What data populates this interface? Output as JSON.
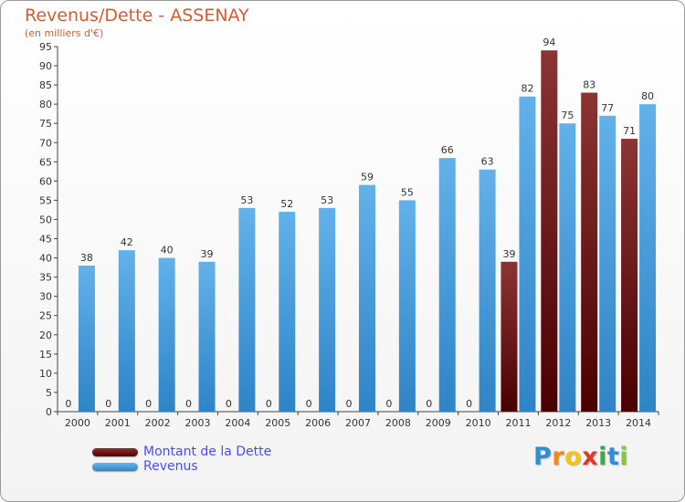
{
  "header": {
    "title": "Revenus/Dette - ASSENAY",
    "subtitle": "(en milliers d'€)"
  },
  "chart_data": {
    "type": "bar",
    "categories": [
      "2000",
      "2001",
      "2002",
      "2003",
      "2004",
      "2005",
      "2006",
      "2007",
      "2008",
      "2009",
      "2010",
      "2011",
      "2012",
      "2013",
      "2014"
    ],
    "series": [
      {
        "name": "Montant de la Dette",
        "color": "#7a1e1e",
        "values": [
          0,
          0,
          0,
          0,
          0,
          0,
          0,
          0,
          0,
          0,
          0,
          39,
          94,
          83,
          71
        ]
      },
      {
        "name": "Revenus",
        "color": "#3d97dc",
        "values": [
          38,
          42,
          40,
          39,
          53,
          52,
          53,
          59,
          55,
          66,
          63,
          82,
          75,
          77,
          80
        ]
      }
    ],
    "ylim": [
      0,
      95
    ],
    "yticks": [
      0,
      5,
      10,
      15,
      20,
      25,
      30,
      35,
      40,
      45,
      50,
      55,
      60,
      65,
      70,
      75,
      80,
      85,
      90,
      95
    ],
    "grid": false,
    "legend_position": "bottom-left"
  },
  "legend": {
    "items": [
      {
        "label": "Montant de la Dette"
      },
      {
        "label": "Revenus"
      }
    ]
  },
  "logo": {
    "letters": [
      "P",
      "r",
      "o",
      "x",
      "i",
      "t",
      "i"
    ]
  }
}
